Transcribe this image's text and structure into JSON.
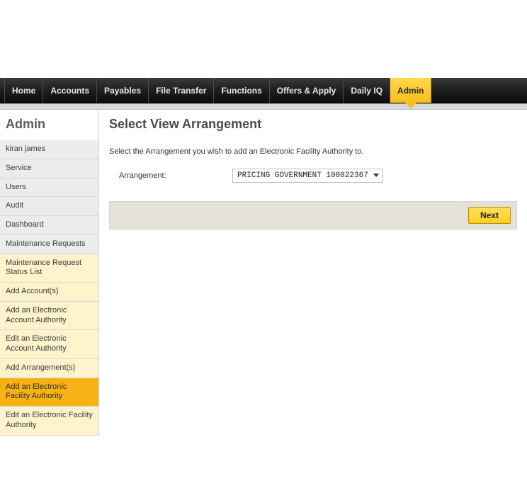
{
  "topnav": {
    "tabs": [
      {
        "label": "Home",
        "active": false
      },
      {
        "label": "Accounts",
        "active": false
      },
      {
        "label": "Payables",
        "active": false
      },
      {
        "label": "File Transfer",
        "active": false
      },
      {
        "label": "Functions",
        "active": false
      },
      {
        "label": "Offers & Apply",
        "active": false
      },
      {
        "label": "Daily IQ",
        "active": false
      },
      {
        "label": "Admin",
        "active": true
      }
    ]
  },
  "sidebar": {
    "title": "Admin",
    "items": [
      {
        "label": "kiran james",
        "group": "a",
        "active": false
      },
      {
        "label": "Service",
        "group": "a",
        "active": false
      },
      {
        "label": "Users",
        "group": "a",
        "active": false
      },
      {
        "label": "Audit",
        "group": "a",
        "active": false
      },
      {
        "label": "Dashboard",
        "group": "a",
        "active": false
      },
      {
        "label": "Maintenance Requests",
        "group": "a",
        "active": false
      },
      {
        "label": "Maintenance Request Status List",
        "group": "b",
        "active": false
      },
      {
        "label": "Add Account(s)",
        "group": "b",
        "active": false
      },
      {
        "label": "Add an Electronic Account Authority",
        "group": "b",
        "active": false
      },
      {
        "label": "Edit an Electronic Account Authority",
        "group": "b",
        "active": false
      },
      {
        "label": "Add Arrangement(s)",
        "group": "b",
        "active": false
      },
      {
        "label": "Add an Electronic Facility Authority",
        "group": "b",
        "active": true
      },
      {
        "label": "Edit an Electronic Facility Authority",
        "group": "b",
        "active": false
      }
    ]
  },
  "main": {
    "title": "Select View Arrangement",
    "instruction": "Select the Arrangement you wish to add an Electronic Facility Authority to.",
    "form": {
      "arrangement_label": "Arrangement:",
      "arrangement_value": "PRICING GOVERNMENT 100022367"
    },
    "actions": {
      "next_label": "Next"
    }
  },
  "colors": {
    "accent_yellow": "#f6b215",
    "nav_dark": "#1e1e1e",
    "panel_beige": "#e4e2d9"
  }
}
